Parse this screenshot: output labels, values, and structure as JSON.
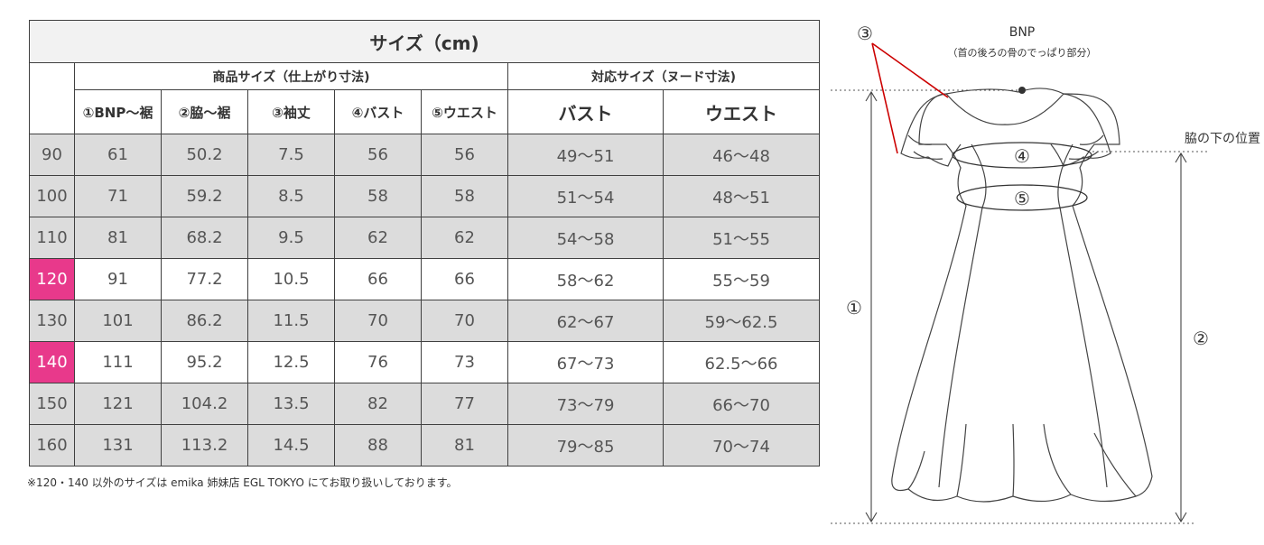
{
  "table": {
    "title": "サイズ（cm)",
    "group_product": "商品サイズ（仕上がり寸法)",
    "group_body": "対応サイズ（ヌード寸法)",
    "col_headers": [
      "①BNP～裾",
      "②脇～裾",
      "③袖丈",
      "④バスト",
      "⑤ウエスト",
      "バスト",
      "ウエスト"
    ],
    "rows": [
      {
        "size": "90",
        "cells": [
          "61",
          "50.2",
          "7.5",
          "56",
          "56",
          "49～51",
          "46～48"
        ],
        "highlight": false
      },
      {
        "size": "100",
        "cells": [
          "71",
          "59.2",
          "8.5",
          "58",
          "58",
          "51～54",
          "48～51"
        ],
        "highlight": false
      },
      {
        "size": "110",
        "cells": [
          "81",
          "68.2",
          "9.5",
          "62",
          "62",
          "54～58",
          "51～55"
        ],
        "highlight": false
      },
      {
        "size": "120",
        "cells": [
          "91",
          "77.2",
          "10.5",
          "66",
          "66",
          "58～62",
          "55～59"
        ],
        "highlight": true
      },
      {
        "size": "130",
        "cells": [
          "101",
          "86.2",
          "11.5",
          "70",
          "70",
          "62～67",
          "59～62.5"
        ],
        "highlight": false
      },
      {
        "size": "140",
        "cells": [
          "111",
          "95.2",
          "12.5",
          "76",
          "73",
          "67～73",
          "62.5～66"
        ],
        "highlight": true
      },
      {
        "size": "150",
        "cells": [
          "121",
          "104.2",
          "13.5",
          "82",
          "77",
          "73～79",
          "66～70"
        ],
        "highlight": false
      },
      {
        "size": "160",
        "cells": [
          "131",
          "113.2",
          "14.5",
          "88",
          "81",
          "79～85",
          "70～74"
        ],
        "highlight": false
      }
    ]
  },
  "footnote": "※120・140 以外のサイズは emika 姉妹店 EGL TOKYO にてお取り扱いしております。",
  "diagram": {
    "bnp_label": "BNP",
    "bnp_note": "（首の後ろの骨のでっぱり部分）",
    "underarm_label": "脇の下の位置",
    "marker_1": "①",
    "marker_2": "②",
    "marker_3": "③",
    "marker_4": "④",
    "marker_5": "⑤"
  },
  "colors": {
    "highlight": "#e8398b",
    "shaded_row": "#dcdcdc",
    "sleeve_pointer": "#cc0000"
  }
}
